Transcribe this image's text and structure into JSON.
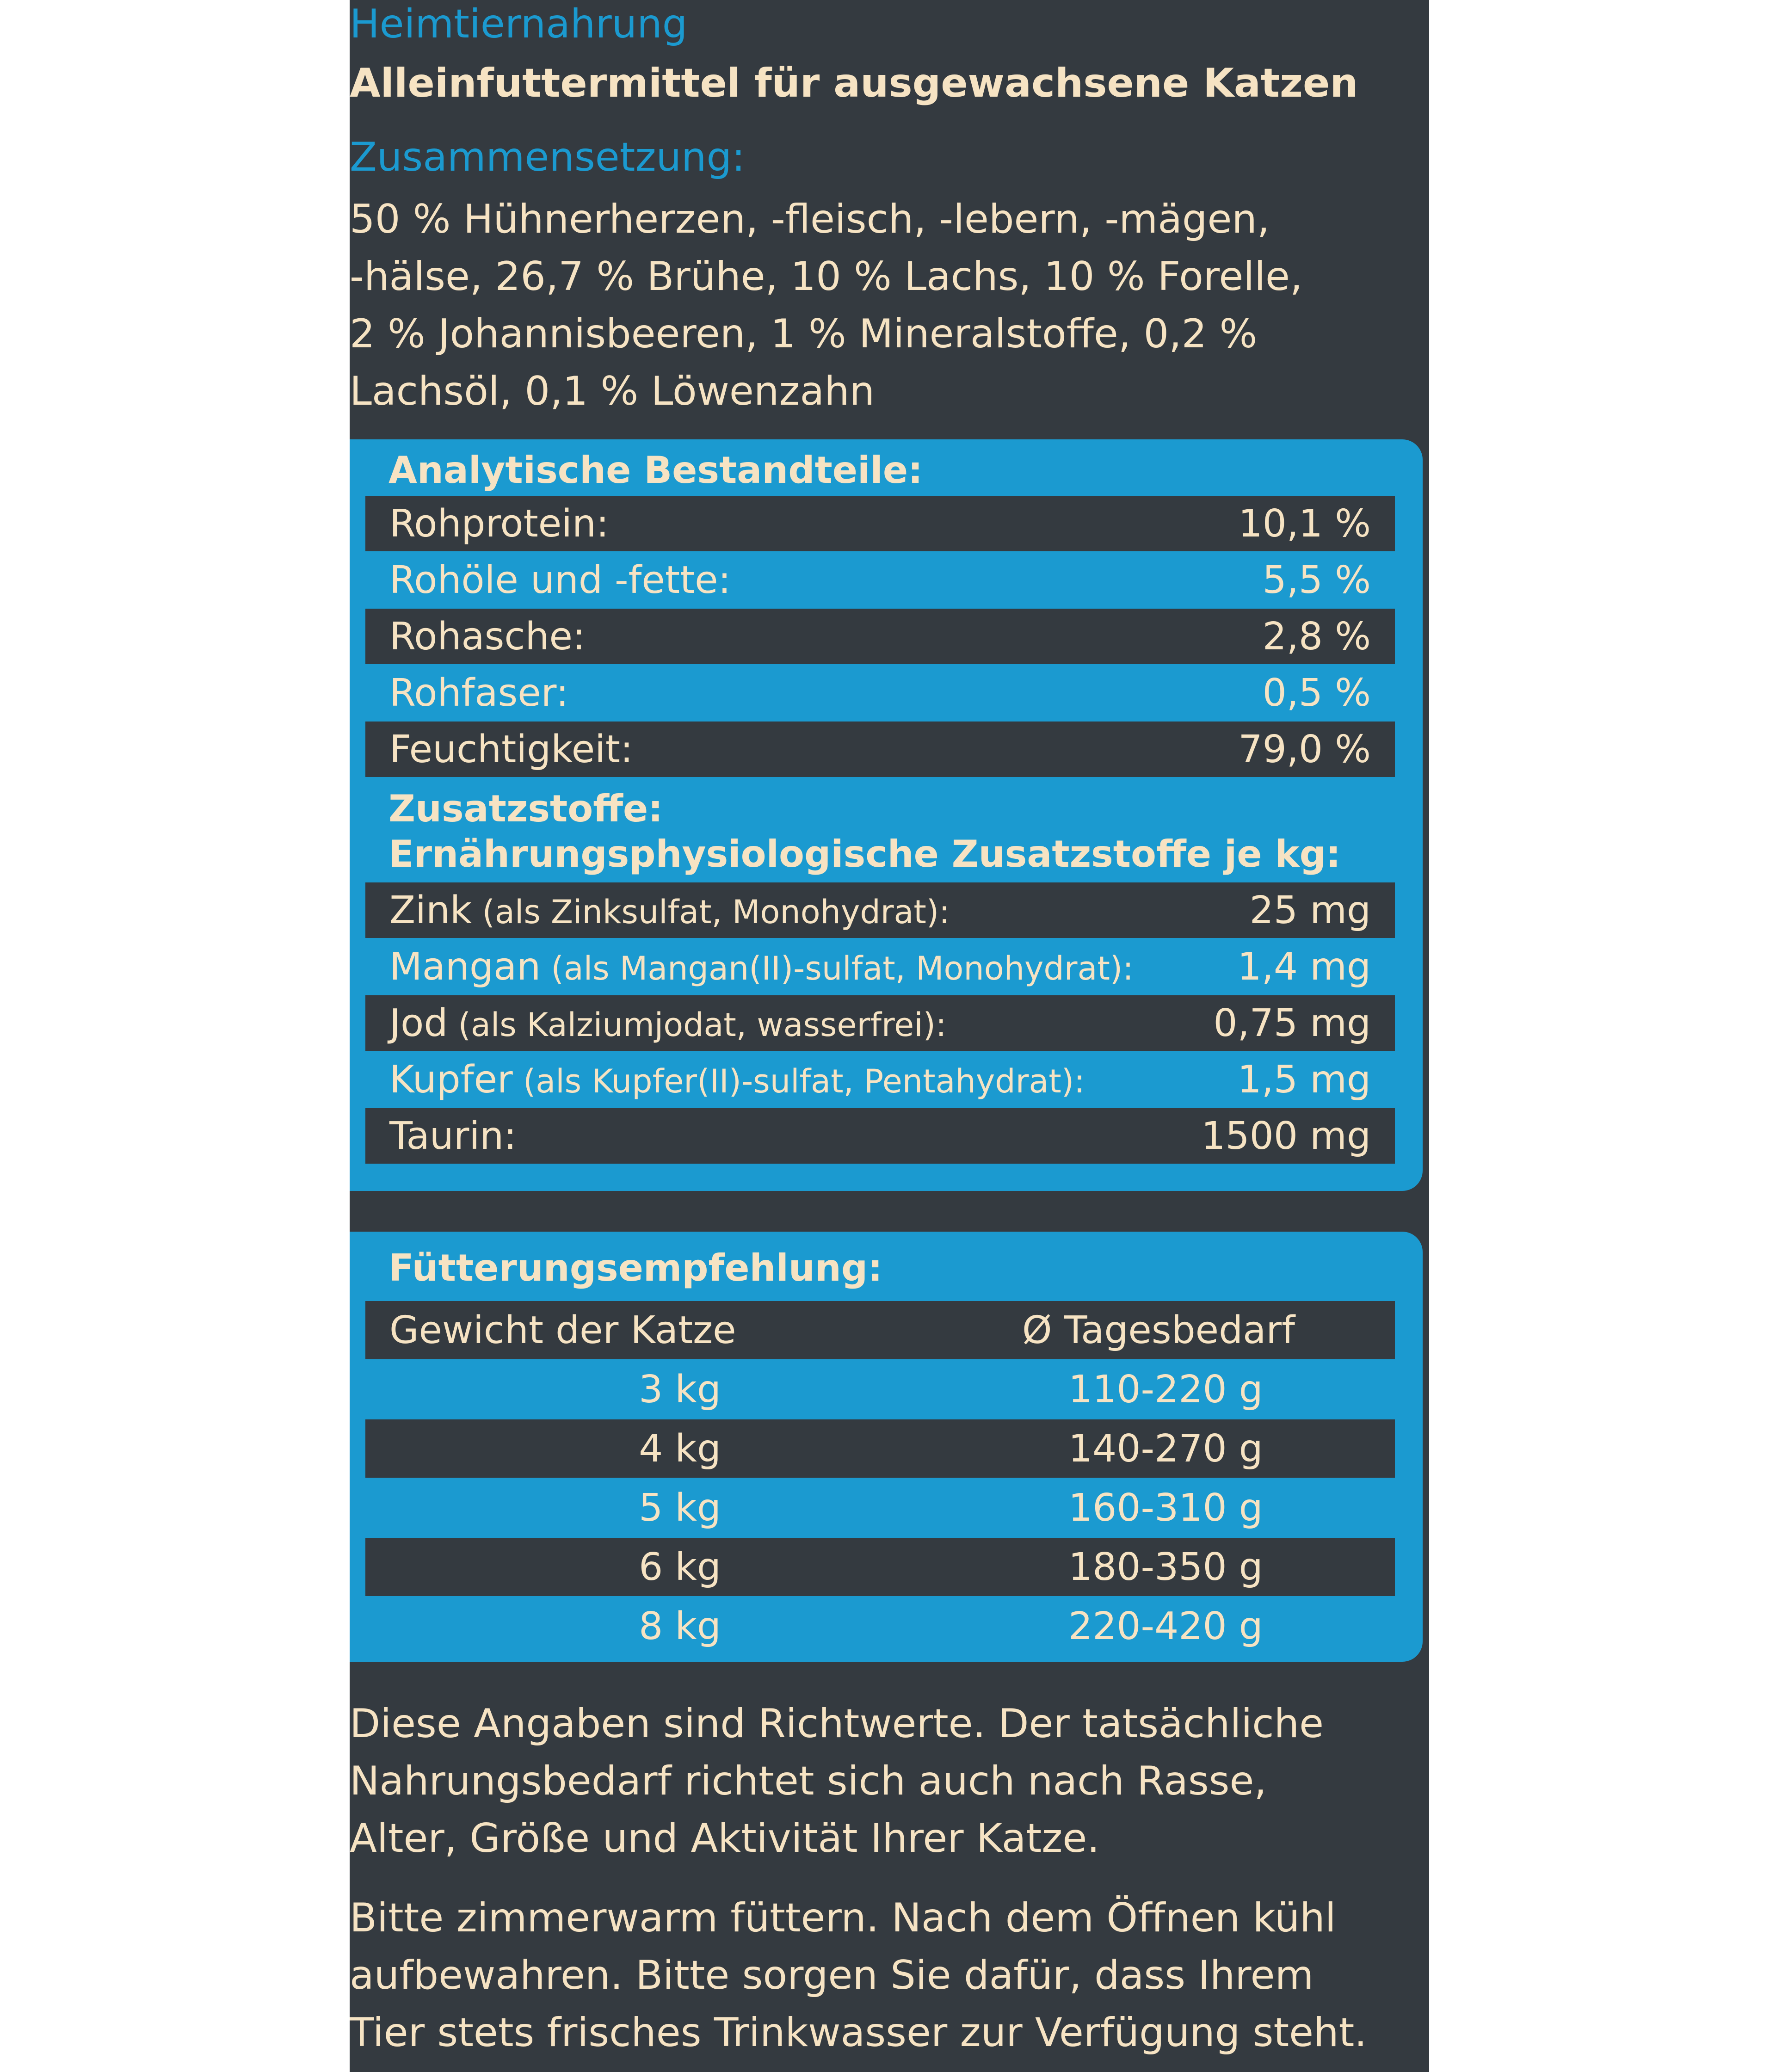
{
  "header": {
    "category": "Heimtiernahrung",
    "product_type": "Alleinfuttermittel  für ausgewachsene Katzen",
    "composition_title": "Zusammensetzung:",
    "composition_lines": [
      "50 % Hühnerherzen, -fleisch, -lebern, -mägen,",
      "-hälse, 26,7 % Brühe, 10 % Lachs, 10 % Forelle,",
      "2 % Johannisbeeren, 1 % Mineralstoffe, 0,2 %",
      "Lachsöl, 0,1 % Löwenzahn"
    ]
  },
  "analysis": {
    "title": "Analytische Bestandteile:",
    "rows": [
      {
        "label": "Rohprotein:",
        "value": "10,1 %"
      },
      {
        "label": "Rohöle und -fette:",
        "value": "5,5 %"
      },
      {
        "label": "Rohasche:",
        "value": "2,8 %"
      },
      {
        "label": "Rohfaser:",
        "value": "0,5 %"
      },
      {
        "label": "Feuchtigkeit:",
        "value": "79,0 %"
      }
    ]
  },
  "additives": {
    "title": "Zusatzstoffe:",
    "subtitle": "Ernährungsphysiologische Zusatzstoffe je kg:",
    "rows": [
      {
        "label": "Zink",
        "detail": " (als Zinksulfat, Monohydrat):",
        "value": "25 mg"
      },
      {
        "label": "Mangan",
        "detail": " (als Mangan(II)-sulfat, Monohydrat):",
        "value": "1,4 mg"
      },
      {
        "label": "Jod",
        "detail": " (als Kalziumjodat, wasserfrei):",
        "value": "0,75 mg"
      },
      {
        "label": "Kupfer",
        "detail": " (als Kupfer(II)-sulfat, Pentahydrat):",
        "value": "1,5 mg"
      },
      {
        "label": "Taurin:",
        "detail": "",
        "value": "1500 mg"
      }
    ]
  },
  "feeding": {
    "title": "Fütterungsempfehlung:",
    "col_weight": "Gewicht der Katze",
    "col_daily": "Ø Tagesbedarf",
    "rows": [
      {
        "weight": "3 kg",
        "daily": "110-220 g"
      },
      {
        "weight": "4 kg",
        "daily": "140-270 g"
      },
      {
        "weight": "5 kg",
        "daily": "160-310 g"
      },
      {
        "weight": "6 kg",
        "daily": "180-350 g"
      },
      {
        "weight": "8 kg",
        "daily": "220-420 g"
      }
    ]
  },
  "notes": {
    "note1_lines": [
      "Diese Angaben sind Richtwerte. Der tatsächliche",
      "Nahrungsbedarf richtet sich auch nach Rasse,",
      "Alter, Größe und Aktivität Ihrer Katze."
    ],
    "note2_lines": [
      "Bitte zimmerwarm füttern. Nach dem Öffnen kühl",
      "aufbewahren. Bitte sorgen Sie dafür, dass Ihrem",
      "Tier stets frisches Trinkwasser zur Verfügung steht."
    ]
  },
  "colors": {
    "panel": "#343a40",
    "blue": "#1b9ad0",
    "beige": "#f6e3c3"
  }
}
